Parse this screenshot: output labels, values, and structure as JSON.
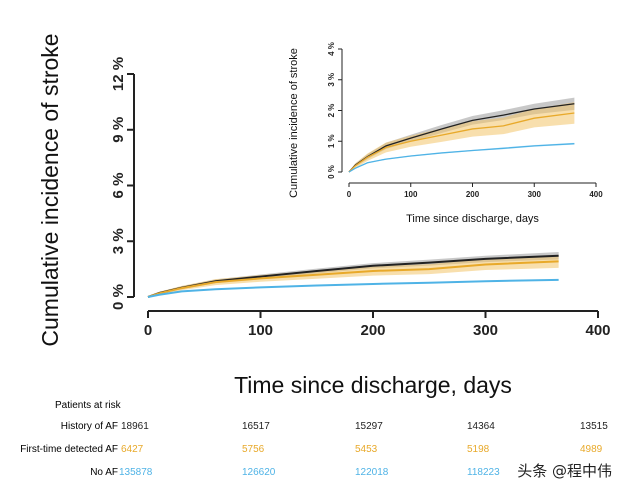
{
  "chart_data": [
    {
      "type": "line",
      "xlabel": "Time since discharge, days",
      "ylabel": "Cumulative incidence of stroke",
      "xlim": [
        0,
        400
      ],
      "ylim": [
        0,
        12
      ],
      "xticks": [
        "0",
        "100",
        "200",
        "300",
        "400"
      ],
      "yticks": [
        "0 %",
        "3 %",
        "6 %",
        "9 %",
        "12 %"
      ],
      "x": [
        0,
        10,
        30,
        60,
        100,
        150,
        200,
        250,
        300,
        365
      ],
      "series": [
        {
          "name": "History of AF",
          "color": "#222222",
          "band_color": "#9a9a9a",
          "values": [
            0,
            0.22,
            0.5,
            0.85,
            1.1,
            1.4,
            1.68,
            1.85,
            2.05,
            2.22
          ],
          "ci_half_width": [
            0,
            0.05,
            0.08,
            0.1,
            0.11,
            0.13,
            0.14,
            0.16,
            0.17,
            0.2
          ]
        },
        {
          "name": "First-time detected AF",
          "color": "#e8a92a",
          "band_color": "#f2c56a",
          "values": [
            0,
            0.2,
            0.48,
            0.8,
            1.0,
            1.2,
            1.4,
            1.5,
            1.75,
            1.92
          ],
          "ci_half_width": [
            0,
            0.08,
            0.12,
            0.16,
            0.18,
            0.22,
            0.25,
            0.27,
            0.3,
            0.35
          ]
        },
        {
          "name": "No AF",
          "color": "#4fb3e6",
          "band_color": "#a6d8f2",
          "values": [
            0,
            0.12,
            0.3,
            0.42,
            0.52,
            0.62,
            0.7,
            0.77,
            0.85,
            0.92
          ],
          "ci_half_width": [
            0,
            0.01,
            0.02,
            0.02,
            0.02,
            0.02,
            0.02,
            0.03,
            0.03,
            0.03
          ]
        }
      ]
    },
    {
      "type": "line",
      "inset": true,
      "xlabel": "Time since discharge, days",
      "ylabel": "Cumulative incidence of stroke",
      "xlim": [
        0,
        400
      ],
      "ylim": [
        0,
        4
      ],
      "xticks": [
        "0",
        "100",
        "200",
        "300",
        "400"
      ],
      "yticks": [
        "0 %",
        "1 %",
        "2 %",
        "3 %",
        "4 %"
      ]
    }
  ],
  "risk_table": {
    "title": "Patients at risk",
    "rows": [
      {
        "label": "History of AF",
        "color": "#222222",
        "values": [
          "18961",
          "16517",
          "15297",
          "14364",
          "13515"
        ]
      },
      {
        "label": "First-time detected AF",
        "color": "#e8a92a",
        "values": [
          "6427",
          "5756",
          "5453",
          "5198",
          "4989"
        ]
      },
      {
        "label": "No AF",
        "color": "#4fb3e6",
        "values": [
          "135878",
          "126620",
          "122018",
          "118223",
          ""
        ]
      }
    ]
  },
  "watermark": "头条 @程中伟"
}
